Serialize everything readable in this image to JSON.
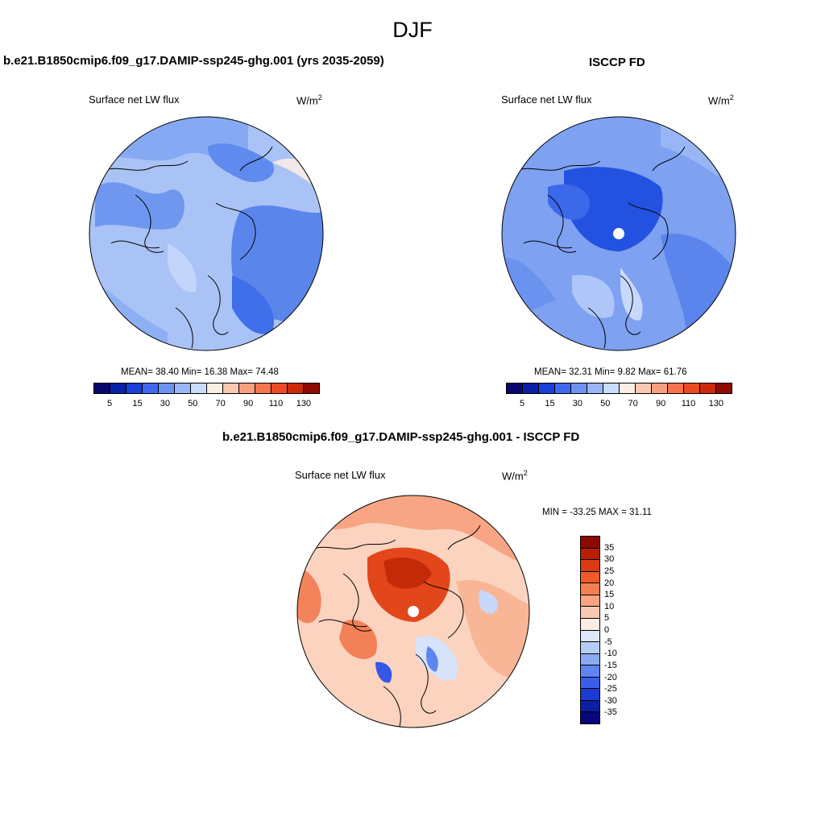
{
  "season": "DJF",
  "panels": {
    "model": {
      "title": "b.e21.B1850cmip6.f09_g17.DAMIP-ssp245-ghg.001 (yrs 2035-2059)",
      "variable": "Surface net LW flux",
      "units": "W/m",
      "units_exp": "2",
      "stats": "MEAN=  38.40  Min=  16.38  Max=  74.48"
    },
    "obs": {
      "title": "ISCCP FD",
      "variable": "Surface net LW flux",
      "units": "W/m",
      "units_exp": "2",
      "stats": "MEAN=  32.31  Min=   9.82  Max=  61.76"
    },
    "diff": {
      "title": "b.e21.B1850cmip6.f09_g17.DAMIP-ssp245-ghg.001 - ISCCP FD",
      "variable": "Surface net LW flux",
      "units": "W/m",
      "units_exp": "2",
      "minmax": "MIN = -33.25 MAX =  31.11"
    }
  },
  "colorbar_abs": {
    "colors": [
      "#08086e",
      "#0a1fa8",
      "#1a3fd6",
      "#3f68ef",
      "#6e92f2",
      "#9ab6f6",
      "#cadcfb",
      "#fdeee4",
      "#fbc9b1",
      "#f7a07e",
      "#f3744d",
      "#ea4b22",
      "#cc2a0b",
      "#8c0a02"
    ],
    "ticks": [
      "5",
      "15",
      "30",
      "50",
      "70",
      "90",
      "110",
      "130"
    ]
  },
  "colorbar_diff": {
    "colors": [
      "#8c0a02",
      "#b81e06",
      "#dc3a10",
      "#f05a26",
      "#f47f52",
      "#f7a583",
      "#fac9b1",
      "#fdece2",
      "#dde8fa",
      "#b5ccf7",
      "#8aaaf3",
      "#5e85f0",
      "#3a5ee8",
      "#1c3bd2",
      "#0b1ea4",
      "#06077a"
    ],
    "ticks": [
      "35",
      "30",
      "25",
      "20",
      "15",
      "10",
      "5",
      "0",
      "-5",
      "-10",
      "-15",
      "-20",
      "-25",
      "-30",
      "-35"
    ]
  }
}
